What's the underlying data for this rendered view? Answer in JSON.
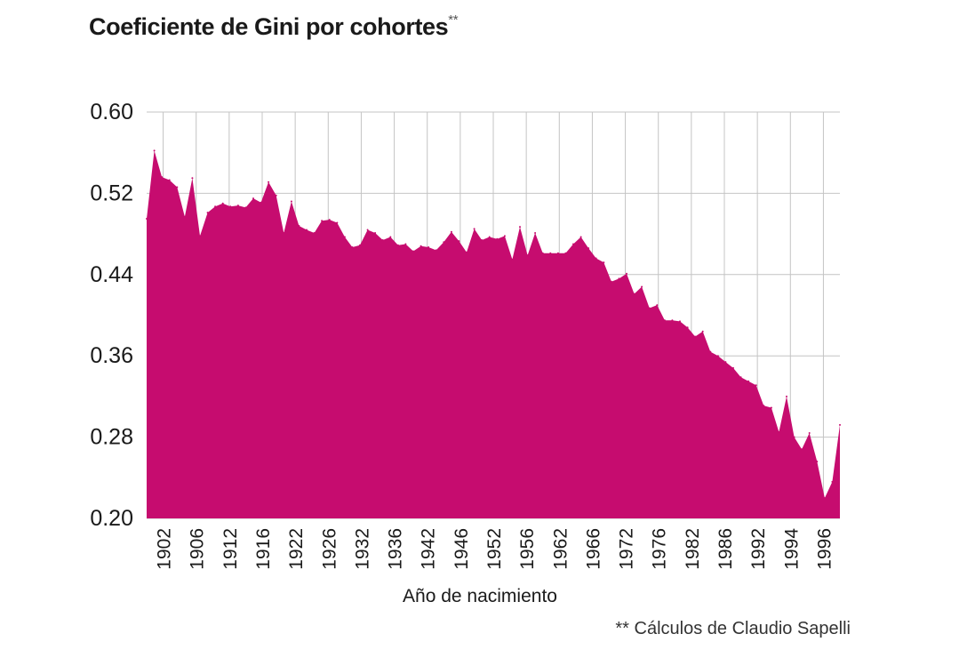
{
  "chart_data": {
    "type": "area",
    "title": "Coeficiente de Gini por cohortes",
    "title_mark": "**",
    "xlabel": "Año de nacimiento",
    "ylabel": "",
    "ylim": [
      0.2,
      0.6
    ],
    "yticks": [
      "0.60",
      "0.52",
      "0.44",
      "0.36",
      "0.28",
      "0.20"
    ],
    "xticks": [
      "1902",
      "1906",
      "1912",
      "1916",
      "1922",
      "1926",
      "1932",
      "1936",
      "1942",
      "1946",
      "1952",
      "1956",
      "1962",
      "1966",
      "1972",
      "1976",
      "1982",
      "1986",
      "1992",
      "1994",
      "1996"
    ],
    "grid": true,
    "fill_color": "#c60c6f",
    "series": [
      {
        "values": [
          0.495,
          0.562,
          0.536,
          0.533,
          0.526,
          0.497,
          0.535,
          0.478,
          0.501,
          0.507,
          0.51,
          0.507,
          0.508,
          0.506,
          0.515,
          0.511,
          0.531,
          0.518,
          0.481,
          0.512,
          0.488,
          0.484,
          0.481,
          0.493,
          0.494,
          0.491,
          0.477,
          0.467,
          0.469,
          0.484,
          0.481,
          0.474,
          0.477,
          0.469,
          0.47,
          0.463,
          0.468,
          0.467,
          0.464,
          0.472,
          0.482,
          0.473,
          0.462,
          0.485,
          0.474,
          0.477,
          0.475,
          0.478,
          0.455,
          0.487,
          0.459,
          0.481,
          0.461,
          0.461,
          0.461,
          0.461,
          0.47,
          0.477,
          0.466,
          0.456,
          0.452,
          0.433,
          0.436,
          0.441,
          0.421,
          0.428,
          0.407,
          0.41,
          0.395,
          0.395,
          0.394,
          0.388,
          0.379,
          0.384,
          0.364,
          0.36,
          0.354,
          0.348,
          0.339,
          0.335,
          0.331,
          0.311,
          0.309,
          0.285,
          0.32,
          0.28,
          0.268,
          0.284,
          0.256,
          0.22,
          0.236,
          0.292
        ]
      }
    ]
  },
  "footnote": {
    "mark": "**",
    "text": "Cálculos de Claudio Sapelli"
  }
}
